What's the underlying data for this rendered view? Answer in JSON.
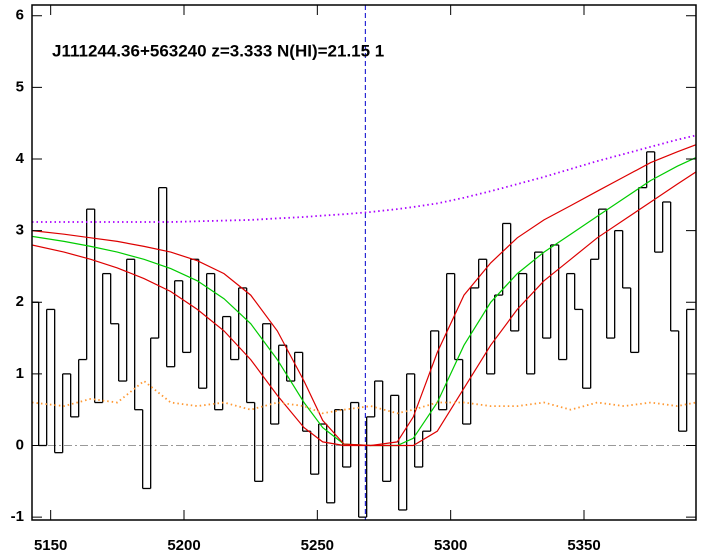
{
  "chart_data": {
    "type": "line",
    "title": "J111244.36+563240 z=3.333 N(HI)=21.15 1",
    "xlim": [
      5143,
      5392
    ],
    "ylim": [
      -1.04,
      6.15
    ],
    "xticks": [
      5150,
      5200,
      5250,
      5300,
      5350
    ],
    "yticks": [
      -1,
      0,
      1,
      2,
      3,
      4,
      5,
      6
    ],
    "vline": 5268,
    "vline_color": "#0000cc",
    "hline": 0,
    "hline_color": "#999999",
    "series": [
      {
        "color": "#000000",
        "style": "step",
        "x": [
          5144,
          5147,
          5150,
          5153,
          5156,
          5159,
          5162,
          5165,
          5168,
          5171,
          5174,
          5177,
          5180,
          5183,
          5186,
          5189,
          5192,
          5195,
          5198,
          5201,
          5204,
          5207,
          5210,
          5213,
          5216,
          5219,
          5222,
          5225,
          5228,
          5231,
          5234,
          5237,
          5240,
          5243,
          5246,
          5249,
          5252,
          5255,
          5258,
          5261,
          5264,
          5267,
          5270,
          5273,
          5276,
          5279,
          5282,
          5285,
          5288,
          5291,
          5294,
          5297,
          5300,
          5303,
          5306,
          5309,
          5312,
          5315,
          5318,
          5321,
          5324,
          5327,
          5330,
          5333,
          5336,
          5339,
          5342,
          5345,
          5348,
          5351,
          5354,
          5357,
          5360,
          5363,
          5366,
          5369,
          5372,
          5375,
          5378,
          5381,
          5384,
          5387,
          5390
        ],
        "values": [
          2.0,
          0.0,
          1.9,
          -0.1,
          1.0,
          0.4,
          1.2,
          3.3,
          0.6,
          2.4,
          1.7,
          0.9,
          2.6,
          0.5,
          -0.6,
          1.5,
          3.6,
          1.1,
          2.3,
          1.3,
          2.6,
          0.8,
          2.4,
          0.5,
          1.8,
          1.2,
          2.2,
          0.6,
          -0.5,
          1.7,
          0.3,
          1.4,
          0.9,
          1.3,
          0.2,
          -0.4,
          0.3,
          -0.8,
          0.5,
          -0.3,
          0.6,
          -1.0,
          0.4,
          0.9,
          -0.5,
          0.7,
          -0.9,
          1.0,
          -0.3,
          0.2,
          1.6,
          0.5,
          2.4,
          1.2,
          0.3,
          2.2,
          2.6,
          1.0,
          2.1,
          3.1,
          1.6,
          2.4,
          1.0,
          2.7,
          1.5,
          2.8,
          1.2,
          2.4,
          1.9,
          0.8,
          2.6,
          3.3,
          1.5,
          3.0,
          2.2,
          1.3,
          3.6,
          4.1,
          2.7,
          3.4,
          1.6,
          0.2,
          1.9
        ]
      },
      {
        "color": "#00cc00",
        "style": "solid",
        "x": [
          5143,
          5155,
          5165,
          5175,
          5185,
          5195,
          5205,
          5215,
          5225,
          5235,
          5245,
          5252,
          5260,
          5270,
          5280,
          5286,
          5295,
          5305,
          5315,
          5325,
          5335,
          5345,
          5355,
          5365,
          5375,
          5385,
          5392
        ],
        "values": [
          2.92,
          2.85,
          2.78,
          2.7,
          2.6,
          2.47,
          2.3,
          2.05,
          1.7,
          1.2,
          0.6,
          0.25,
          0.02,
          0.0,
          0.0,
          0.1,
          0.6,
          1.4,
          2.0,
          2.4,
          2.7,
          2.95,
          3.2,
          3.45,
          3.7,
          3.9,
          4.02
        ]
      },
      {
        "color": "#dd0000",
        "style": "solid",
        "x": [
          5143,
          5155,
          5165,
          5175,
          5185,
          5195,
          5205,
          5215,
          5225,
          5235,
          5245,
          5252,
          5260,
          5270,
          5280,
          5286,
          5295,
          5305,
          5315,
          5325,
          5335,
          5345,
          5355,
          5365,
          5375,
          5385,
          5392
        ],
        "values": [
          3.0,
          2.95,
          2.9,
          2.85,
          2.78,
          2.7,
          2.58,
          2.4,
          2.1,
          1.6,
          0.9,
          0.35,
          0.02,
          0.0,
          0.05,
          0.4,
          1.3,
          2.1,
          2.55,
          2.9,
          3.15,
          3.35,
          3.55,
          3.75,
          3.95,
          4.1,
          4.2
        ]
      },
      {
        "color": "#dd0000",
        "style": "solid",
        "x": [
          5143,
          5155,
          5165,
          5175,
          5185,
          5195,
          5205,
          5215,
          5225,
          5235,
          5245,
          5252,
          5260,
          5270,
          5280,
          5286,
          5295,
          5305,
          5315,
          5325,
          5335,
          5345,
          5355,
          5365,
          5375,
          5385,
          5392
        ],
        "values": [
          2.8,
          2.7,
          2.6,
          2.48,
          2.33,
          2.15,
          1.9,
          1.6,
          1.2,
          0.7,
          0.25,
          0.05,
          0.0,
          0.0,
          0.0,
          0.0,
          0.2,
          0.8,
          1.4,
          1.9,
          2.3,
          2.6,
          2.9,
          3.15,
          3.4,
          3.65,
          3.82
        ]
      },
      {
        "color": "#aa00ff",
        "style": "dotted",
        "x": [
          5143,
          5155,
          5165,
          5175,
          5185,
          5195,
          5205,
          5215,
          5225,
          5235,
          5245,
          5252,
          5260,
          5270,
          5280,
          5286,
          5295,
          5305,
          5315,
          5325,
          5335,
          5345,
          5355,
          5365,
          5375,
          5385,
          5392
        ],
        "values": [
          3.12,
          3.12,
          3.12,
          3.12,
          3.12,
          3.12,
          3.13,
          3.14,
          3.15,
          3.17,
          3.19,
          3.21,
          3.23,
          3.26,
          3.3,
          3.33,
          3.38,
          3.46,
          3.55,
          3.65,
          3.75,
          3.86,
          3.97,
          4.07,
          4.17,
          4.27,
          4.33
        ]
      },
      {
        "color": "#ff9933",
        "style": "dotted",
        "x": [
          5143,
          5155,
          5165,
          5175,
          5185,
          5195,
          5205,
          5215,
          5225,
          5235,
          5245,
          5252,
          5260,
          5270,
          5280,
          5286,
          5295,
          5305,
          5315,
          5325,
          5335,
          5345,
          5355,
          5365,
          5375,
          5385,
          5392
        ],
        "values": [
          0.6,
          0.55,
          0.65,
          0.6,
          0.9,
          0.6,
          0.55,
          0.6,
          0.5,
          0.6,
          0.55,
          0.45,
          0.5,
          0.55,
          0.45,
          0.5,
          0.6,
          0.6,
          0.55,
          0.55,
          0.6,
          0.5,
          0.6,
          0.55,
          0.6,
          0.55,
          0.6
        ]
      }
    ]
  }
}
